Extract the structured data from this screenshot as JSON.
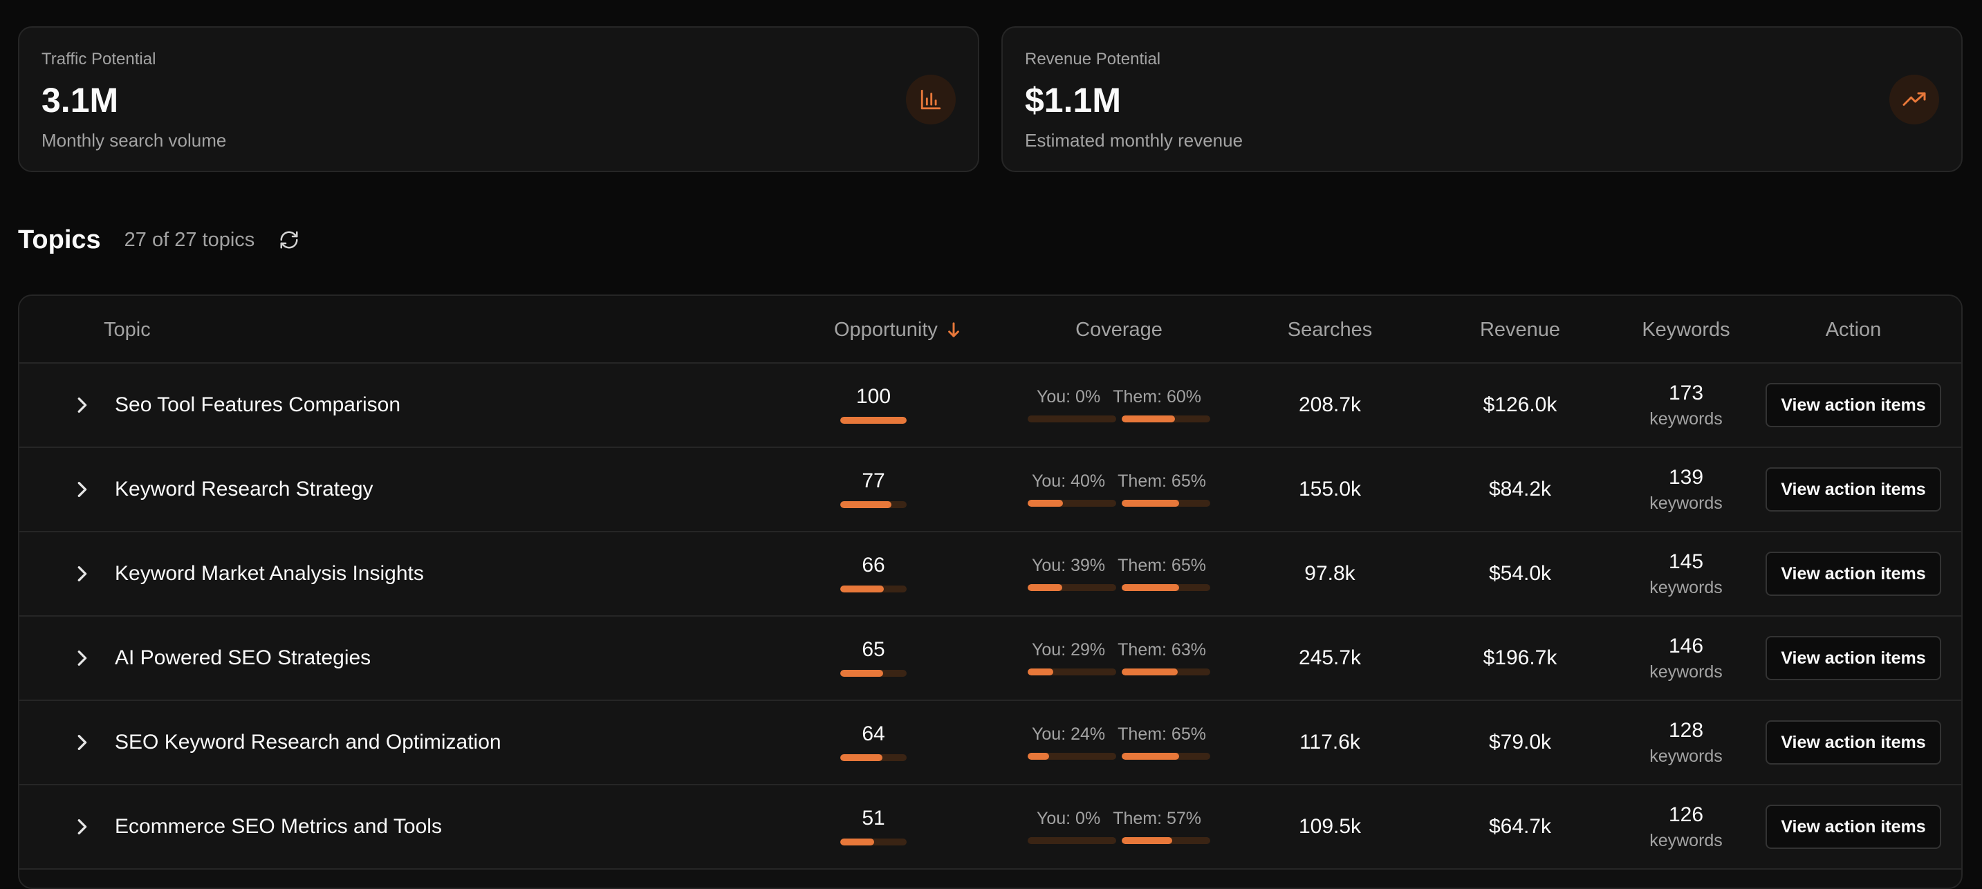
{
  "metrics": [
    {
      "label": "Traffic Potential",
      "value": "3.1M",
      "sub": "Monthly search volume",
      "icon": "bar-chart-icon"
    },
    {
      "label": "Revenue Potential",
      "value": "$1.1M",
      "sub": "Estimated monthly revenue",
      "icon": "trending-up-icon"
    }
  ],
  "topics": {
    "title": "Topics",
    "count": "27 of 27 topics"
  },
  "table": {
    "headers": {
      "topic": "Topic",
      "opportunity": "Opportunity",
      "coverage": "Coverage",
      "searches": "Searches",
      "revenue": "Revenue",
      "keywords": "Keywords",
      "action": "Action"
    },
    "sort": {
      "column": "opportunity",
      "direction": "descending"
    },
    "rows": [
      {
        "topic": "Seo Tool Features Comparison",
        "opportunity": "100",
        "opportunity_pct": 100,
        "you": "You: 0%",
        "you_pct": 0,
        "them": "Them: 60%",
        "them_pct": 60,
        "searches": "208.7k",
        "revenue": "$126.0k",
        "keywords": "173",
        "keywords_label": "keywords",
        "action": "View action items"
      },
      {
        "topic": "Keyword Research Strategy",
        "opportunity": "77",
        "opportunity_pct": 77,
        "you": "You: 40%",
        "you_pct": 40,
        "them": "Them: 65%",
        "them_pct": 65,
        "searches": "155.0k",
        "revenue": "$84.2k",
        "keywords": "139",
        "keywords_label": "keywords",
        "action": "View action items"
      },
      {
        "topic": "Keyword Market Analysis Insights",
        "opportunity": "66",
        "opportunity_pct": 66,
        "you": "You: 39%",
        "you_pct": 39,
        "them": "Them: 65%",
        "them_pct": 65,
        "searches": "97.8k",
        "revenue": "$54.0k",
        "keywords": "145",
        "keywords_label": "keywords",
        "action": "View action items"
      },
      {
        "topic": "AI Powered SEO Strategies",
        "opportunity": "65",
        "opportunity_pct": 65,
        "you": "You: 29%",
        "you_pct": 29,
        "them": "Them: 63%",
        "them_pct": 63,
        "searches": "245.7k",
        "revenue": "$196.7k",
        "keywords": "146",
        "keywords_label": "keywords",
        "action": "View action items"
      },
      {
        "topic": "SEO Keyword Research and Optimization",
        "opportunity": "64",
        "opportunity_pct": 64,
        "you": "You: 24%",
        "you_pct": 24,
        "them": "Them: 65%",
        "them_pct": 65,
        "searches": "117.6k",
        "revenue": "$79.0k",
        "keywords": "128",
        "keywords_label": "keywords",
        "action": "View action items"
      },
      {
        "topic": "Ecommerce SEO Metrics and Tools",
        "opportunity": "51",
        "opportunity_pct": 51,
        "you": "You: 0%",
        "you_pct": 0,
        "them": "Them: 57%",
        "them_pct": 57,
        "searches": "109.5k",
        "revenue": "$64.7k",
        "keywords": "126",
        "keywords_label": "keywords",
        "action": "View action items"
      }
    ]
  },
  "colors": {
    "accent": "#e8783a",
    "track": "#3a2414",
    "background": "#0a0a0a"
  }
}
